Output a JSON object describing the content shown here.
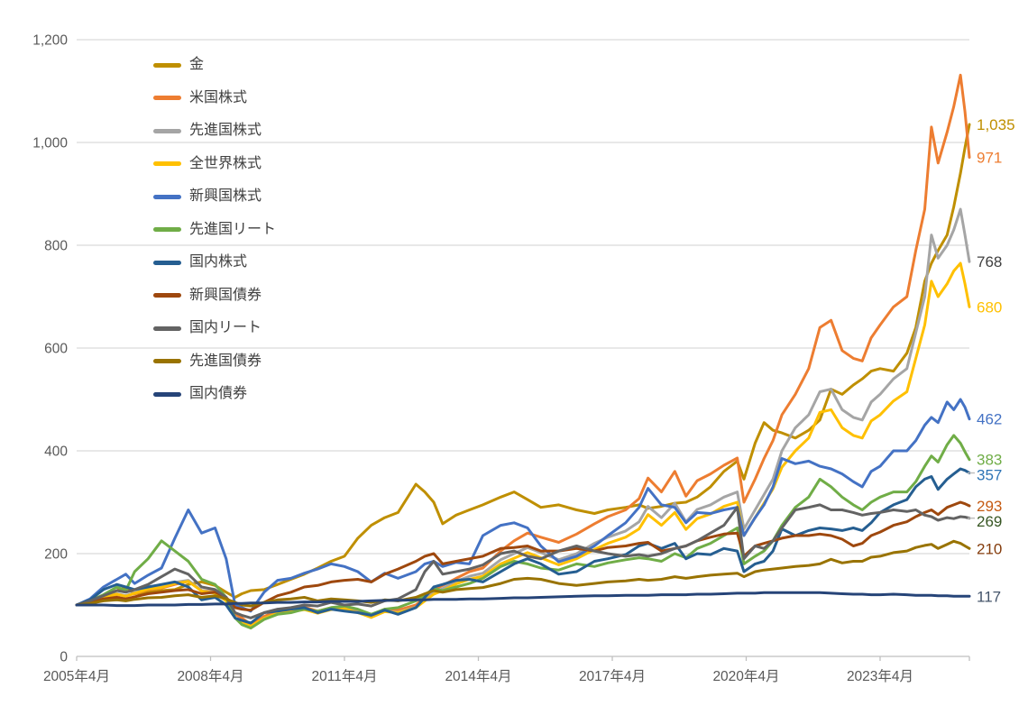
{
  "chart_data": {
    "type": "line",
    "title": "",
    "grid": "horizontal",
    "legend_position": "top-left-inside",
    "axis_colors": {
      "grid": "#D9D9D9",
      "axis_line": "#BFBFBF",
      "tick_text": "#595959"
    },
    "y_axis": {
      "range": [
        0,
        1200
      ],
      "tick_values": [
        0,
        200,
        400,
        600,
        800,
        1000,
        1200
      ],
      "tick_labels": [
        "0",
        "200",
        "400",
        "600",
        "800",
        "1,000",
        "1,200"
      ]
    },
    "x_axis": {
      "range": [
        2005.3,
        2025.3
      ],
      "tick_values": [
        2005.3,
        2008.3,
        2011.3,
        2014.3,
        2017.3,
        2020.3,
        2023.3
      ],
      "tick_labels": [
        "2005年4月",
        "2008年4月",
        "2011年4月",
        "2014年4月",
        "2017年4月",
        "2020年4月",
        "2023年4月"
      ]
    },
    "x": [
      2005.3,
      2005.6,
      2005.9,
      2006.2,
      2006.4,
      2006.6,
      2006.9,
      2007.2,
      2007.5,
      2007.8,
      2008.1,
      2008.4,
      2008.65,
      2008.85,
      2009.0,
      2009.2,
      2009.5,
      2009.8,
      2010.1,
      2010.4,
      2010.7,
      2011.0,
      2011.3,
      2011.6,
      2011.9,
      2012.2,
      2012.5,
      2012.9,
      2013.1,
      2013.3,
      2013.5,
      2013.8,
      2014.1,
      2014.4,
      2014.8,
      2015.1,
      2015.4,
      2015.7,
      2016.1,
      2016.5,
      2016.9,
      2017.2,
      2017.6,
      2017.9,
      2018.1,
      2018.4,
      2018.7,
      2018.95,
      2019.2,
      2019.5,
      2019.8,
      2020.1,
      2020.25,
      2020.5,
      2020.7,
      2020.9,
      2021.1,
      2021.4,
      2021.7,
      2021.95,
      2022.2,
      2022.45,
      2022.7,
      2022.9,
      2023.1,
      2023.3,
      2023.6,
      2023.9,
      2024.1,
      2024.3,
      2024.45,
      2024.6,
      2024.8,
      2024.95,
      2025.1,
      2025.2,
      2025.3
    ],
    "series": [
      {
        "name": "金",
        "color": "#BF8F00",
        "label_color": "#BF8F00",
        "end_label": "1,035",
        "end_value": 1035,
        "values": [
          100,
          105,
          117,
          128,
          135,
          122,
          125,
          128,
          130,
          140,
          145,
          138,
          125,
          115,
          122,
          128,
          130,
          140,
          150,
          160,
          172,
          185,
          195,
          230,
          255,
          270,
          280,
          335,
          320,
          300,
          258,
          275,
          285,
          295,
          310,
          320,
          305,
          290,
          295,
          285,
          278,
          285,
          290,
          295,
          288,
          292,
          298,
          300,
          310,
          330,
          360,
          380,
          345,
          415,
          455,
          440,
          435,
          425,
          440,
          460,
          520,
          510,
          528,
          540,
          555,
          560,
          555,
          590,
          640,
          730,
          765,
          790,
          820,
          875,
          940,
          990,
          1035
        ]
      },
      {
        "name": "米国株式",
        "color": "#ED7D31",
        "label_color": "#ED7D31",
        "end_label": "971",
        "end_value": 971,
        "values": [
          100,
          106,
          115,
          120,
          118,
          122,
          130,
          133,
          140,
          146,
          128,
          126,
          115,
          82,
          75,
          62,
          78,
          88,
          92,
          96,
          88,
          95,
          97,
          90,
          80,
          92,
          90,
          100,
          115,
          130,
          138,
          152,
          165,
          172,
          205,
          225,
          240,
          232,
          222,
          238,
          258,
          272,
          285,
          307,
          347,
          320,
          360,
          312,
          342,
          355,
          372,
          386,
          300,
          345,
          385,
          420,
          470,
          510,
          560,
          640,
          654,
          595,
          580,
          575,
          620,
          645,
          680,
          700,
          790,
          870,
          1030,
          960,
          1020,
          1070,
          1131,
          1060,
          971
        ]
      },
      {
        "name": "先進国株式",
        "color": "#A5A5A5",
        "label_color": "#404040",
        "end_label": "768",
        "end_value": 768,
        "values": [
          100,
          107,
          117,
          122,
          118,
          124,
          133,
          136,
          144,
          148,
          128,
          124,
          110,
          75,
          68,
          58,
          74,
          84,
          88,
          92,
          84,
          92,
          94,
          86,
          76,
          88,
          86,
          96,
          110,
          124,
          132,
          146,
          156,
          162,
          188,
          200,
          212,
          202,
          188,
          200,
          220,
          232,
          244,
          262,
          292,
          270,
          298,
          262,
          286,
          295,
          310,
          320,
          248,
          285,
          315,
          345,
          400,
          445,
          470,
          515,
          520,
          480,
          465,
          460,
          495,
          510,
          540,
          560,
          630,
          700,
          820,
          775,
          800,
          830,
          870,
          820,
          768
        ]
      },
      {
        "name": "全世界株式",
        "color": "#FFC000",
        "label_color": "#FFC000",
        "end_label": "680",
        "end_value": 680,
        "values": [
          100,
          106,
          116,
          121,
          117,
          123,
          131,
          134,
          142,
          146,
          127,
          123,
          108,
          75,
          68,
          59,
          74,
          84,
          87,
          91,
          84,
          91,
          93,
          85,
          76,
          87,
          85,
          95,
          108,
          121,
          128,
          141,
          150,
          156,
          180,
          191,
          202,
          192,
          178,
          190,
          208,
          220,
          232,
          248,
          276,
          255,
          280,
          247,
          268,
          277,
          292,
          300,
          235,
          270,
          298,
          326,
          368,
          400,
          425,
          475,
          480,
          445,
          430,
          425,
          458,
          470,
          497,
          515,
          580,
          645,
          730,
          700,
          725,
          750,
          765,
          725,
          680
        ]
      },
      {
        "name": "新興国株式",
        "color": "#4472C4",
        "label_color": "#4472C4",
        "end_label": "462",
        "end_value": 462,
        "values": [
          100,
          112,
          135,
          150,
          160,
          142,
          158,
          172,
          230,
          285,
          240,
          250,
          190,
          100,
          95,
          88,
          125,
          148,
          152,
          162,
          170,
          180,
          175,
          165,
          145,
          162,
          152,
          165,
          180,
          185,
          175,
          183,
          180,
          235,
          255,
          260,
          250,
          215,
          184,
          195,
          215,
          235,
          260,
          290,
          327,
          295,
          290,
          260,
          280,
          278,
          285,
          290,
          235,
          270,
          295,
          330,
          385,
          375,
          380,
          370,
          365,
          355,
          340,
          330,
          360,
          370,
          400,
          400,
          420,
          450,
          465,
          455,
          495,
          480,
          500,
          485,
          462
        ]
      },
      {
        "name": "先進国リート",
        "color": "#70AD47",
        "label_color": "#70AD47",
        "end_label": "383",
        "end_value": 383,
        "values": [
          100,
          108,
          120,
          135,
          128,
          165,
          190,
          225,
          205,
          185,
          150,
          140,
          115,
          75,
          62,
          55,
          72,
          82,
          85,
          92,
          88,
          95,
          98,
          92,
          82,
          92,
          95,
          108,
          120,
          132,
          128,
          135,
          142,
          152,
          175,
          185,
          180,
          172,
          168,
          180,
          175,
          182,
          188,
          192,
          190,
          185,
          200,
          192,
          210,
          220,
          235,
          250,
          180,
          195,
          205,
          225,
          255,
          290,
          310,
          345,
          330,
          310,
          295,
          285,
          300,
          310,
          320,
          320,
          340,
          370,
          390,
          378,
          412,
          430,
          415,
          398,
          383
        ]
      },
      {
        "name": "国内株式",
        "color": "#255E91",
        "label_color": "#2E75B6",
        "end_label": "357",
        "end_value": 357,
        "values": [
          100,
          110,
          130,
          140,
          135,
          130,
          135,
          140,
          145,
          135,
          110,
          115,
          100,
          75,
          70,
          65,
          85,
          88,
          92,
          95,
          85,
          92,
          88,
          85,
          80,
          90,
          82,
          95,
          115,
          135,
          140,
          148,
          150,
          145,
          165,
          180,
          190,
          180,
          160,
          165,
          185,
          190,
          198,
          215,
          220,
          210,
          220,
          190,
          200,
          198,
          210,
          205,
          165,
          180,
          185,
          205,
          248,
          235,
          245,
          250,
          248,
          245,
          250,
          245,
          260,
          280,
          295,
          305,
          330,
          345,
          350,
          325,
          345,
          355,
          365,
          362,
          357
        ]
      },
      {
        "name": "新興国債券",
        "color": "#9E480E",
        "label_color": "#C55A11",
        "end_label": "293",
        "end_value": 293,
        "values": [
          100,
          105,
          112,
          115,
          112,
          116,
          122,
          125,
          128,
          130,
          122,
          125,
          115,
          95,
          92,
          90,
          105,
          118,
          125,
          135,
          138,
          145,
          148,
          150,
          145,
          160,
          170,
          185,
          195,
          200,
          180,
          185,
          190,
          195,
          210,
          212,
          215,
          205,
          205,
          210,
          205,
          212,
          215,
          220,
          222,
          205,
          210,
          215,
          225,
          232,
          238,
          240,
          195,
          215,
          220,
          225,
          230,
          235,
          235,
          238,
          235,
          228,
          215,
          220,
          235,
          242,
          255,
          262,
          272,
          280,
          285,
          276,
          290,
          295,
          300,
          297,
          293
        ]
      },
      {
        "name": "国内リート",
        "color": "#636363",
        "label_color": "#375623",
        "end_label": "269",
        "end_value": 269,
        "values": [
          100,
          108,
          118,
          128,
          125,
          130,
          140,
          155,
          170,
          160,
          135,
          130,
          115,
          85,
          80,
          75,
          85,
          92,
          95,
          100,
          98,
          105,
          100,
          102,
          98,
          108,
          112,
          130,
          165,
          185,
          160,
          165,
          170,
          178,
          200,
          205,
          195,
          190,
          205,
          215,
          205,
          200,
          195,
          198,
          195,
          200,
          210,
          215,
          225,
          240,
          255,
          290,
          190,
          215,
          210,
          225,
          250,
          285,
          290,
          295,
          285,
          285,
          280,
          275,
          278,
          280,
          285,
          282,
          285,
          275,
          272,
          265,
          270,
          268,
          272,
          271,
          269
        ]
      },
      {
        "name": "先進国債券",
        "color": "#997300",
        "label_color": "#843C0C",
        "end_label": "210",
        "end_value": 210,
        "values": [
          100,
          103,
          108,
          110,
          108,
          111,
          114,
          115,
          118,
          120,
          115,
          118,
          112,
          105,
          100,
          98,
          105,
          110,
          112,
          115,
          108,
          112,
          110,
          108,
          105,
          110,
          108,
          115,
          122,
          128,
          125,
          130,
          132,
          134,
          142,
          150,
          152,
          150,
          142,
          138,
          142,
          145,
          147,
          150,
          148,
          150,
          155,
          152,
          155,
          158,
          160,
          162,
          155,
          165,
          168,
          170,
          172,
          175,
          177,
          180,
          189,
          182,
          185,
          185,
          193,
          195,
          202,
          205,
          212,
          216,
          218,
          210,
          218,
          224,
          220,
          215,
          210
        ]
      },
      {
        "name": "国内債券",
        "color": "#264478",
        "label_color": "#44546A",
        "end_label": "117",
        "end_value": 117,
        "values": [
          100,
          100,
          100,
          99,
          99,
          99,
          100,
          100,
          100,
          101,
          101,
          102,
          102,
          103,
          103,
          104,
          104,
          105,
          105,
          106,
          106,
          107,
          107,
          107,
          108,
          109,
          109,
          110,
          110,
          111,
          111,
          111,
          112,
          112,
          113,
          114,
          114,
          115,
          116,
          117,
          118,
          118,
          119,
          119,
          119,
          120,
          120,
          120,
          121,
          121,
          122,
          123,
          123,
          123,
          124,
          124,
          124,
          124,
          124,
          124,
          123,
          122,
          121,
          121,
          120,
          120,
          121,
          120,
          119,
          119,
          119,
          118,
          118,
          117,
          117,
          117,
          117
        ]
      }
    ]
  }
}
